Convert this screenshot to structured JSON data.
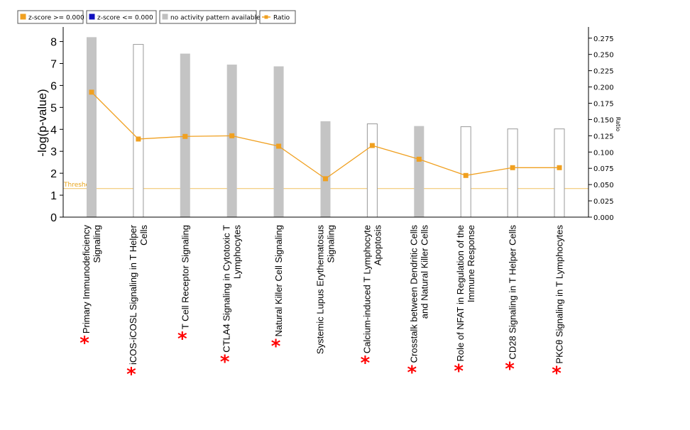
{
  "legend": {
    "items": [
      {
        "label": "z-score >= 0.000",
        "color": "#f0a020",
        "kind": "box"
      },
      {
        "label": "z-score <= 0.000",
        "color": "#1010c0",
        "kind": "box"
      },
      {
        "label": "no activity pattern available",
        "color": "#c0c0c0",
        "kind": "box"
      },
      {
        "label": "Ratio",
        "color": "#f0a020",
        "kind": "line"
      }
    ]
  },
  "colors": {
    "bar_gray": "#c4c4c4",
    "bar_white_stroke": "#9a9a9a",
    "ratio_line": "#f0a020",
    "threshold": "#f0c060",
    "star": "#ff0000"
  },
  "threshold_label": "Threshold",
  "chart_data": {
    "type": "bar",
    "ylabel": "-log(p-value)",
    "y2label": "Ratio",
    "ylim": [
      0,
      8.6
    ],
    "y2lim": [
      0,
      0.29
    ],
    "yticks": [
      "0",
      "1",
      "2",
      "3",
      "4",
      "5",
      "6",
      "7",
      "8"
    ],
    "y2ticks": [
      "0.000",
      "0.025",
      "0.050",
      "0.075",
      "0.100",
      "0.125",
      "0.150",
      "0.175",
      "0.200",
      "0.225",
      "0.250",
      "0.275"
    ],
    "threshold": 1.3,
    "categories": [
      {
        "lines": [
          "Primary Immunodeficiency",
          "Signaling"
        ],
        "star": true
      },
      {
        "lines": [
          "iCOS-iCOSL Signaling in T Helper",
          "Cells"
        ],
        "star": true
      },
      {
        "lines": [
          "T Cell Receptor Signaling"
        ],
        "star": true
      },
      {
        "lines": [
          "CTLA4 Signaling in Cytotoxic T",
          "Lymphocytes"
        ],
        "star": true
      },
      {
        "lines": [
          "Natural Killer Cell Signaling"
        ],
        "star": true
      },
      {
        "lines": [
          "Systemic Lupus Erythematosus",
          "Signaling"
        ],
        "star": false
      },
      {
        "lines": [
          "Calcium-induced T Lymphocyte",
          "Apoptosis"
        ],
        "star": true
      },
      {
        "lines": [
          "Crosstalk between Dendritic Cells",
          "and Natural Killer Cells"
        ],
        "star": true
      },
      {
        "lines": [
          "Role of NFAT in Regulation of the",
          "Immune Response"
        ],
        "star": true
      },
      {
        "lines": [
          "CD28 Signaling in T Helper Cells"
        ],
        "star": true
      },
      {
        "lines": [
          "PKCθ Signaling in T Lymphocytes"
        ],
        "star": true
      }
    ],
    "star_symbol": "*",
    "values": [
      8.2,
      7.87,
      7.45,
      6.95,
      6.87,
      4.37,
      4.25,
      4.15,
      4.12,
      4.02,
      4.02
    ],
    "bar_fill": [
      "gray",
      "white",
      "gray",
      "gray",
      "gray",
      "gray",
      "white",
      "gray",
      "white",
      "white",
      "white"
    ],
    "series": [
      {
        "name": "Ratio",
        "values": [
          0.192,
          0.12,
          0.124,
          0.125,
          0.109,
          0.059,
          0.11,
          0.089,
          0.064,
          0.076,
          0.076
        ]
      }
    ]
  }
}
